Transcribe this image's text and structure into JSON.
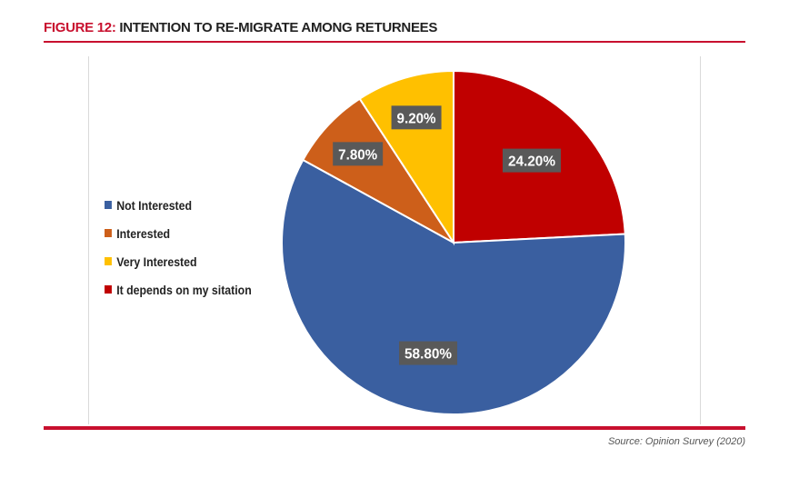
{
  "figure": {
    "number_label": "FIGURE 12:",
    "title": "INTENTION TO RE-MIGRATE AMONG RETURNEES"
  },
  "source_note": "Source: Opinion Survey (2020)",
  "colors": {
    "accent": "#c8102e",
    "label_box": "#595959"
  },
  "chart_data": {
    "type": "pie",
    "title": "INTENTION TO RE-MIGRATE AMONG RETURNEES",
    "legend_position": "left",
    "start_angle_deg": 0,
    "direction": "clockwise",
    "slices": [
      {
        "label": "It depends on my sitation",
        "value": 24.2,
        "value_label": "24.20%",
        "color": "#c00000"
      },
      {
        "label": "Not Interested",
        "value": 58.8,
        "value_label": "58.80%",
        "color": "#3a5fa0"
      },
      {
        "label": "Interested",
        "value": 7.8,
        "value_label": "7.80%",
        "color": "#cd5f1a"
      },
      {
        "label": "Very Interested",
        "value": 9.2,
        "value_label": "9.20%",
        "color": "#ffc000"
      }
    ],
    "legend_order": [
      "Not Interested",
      "Interested",
      "Very Interested",
      "It depends on my sitation"
    ]
  }
}
